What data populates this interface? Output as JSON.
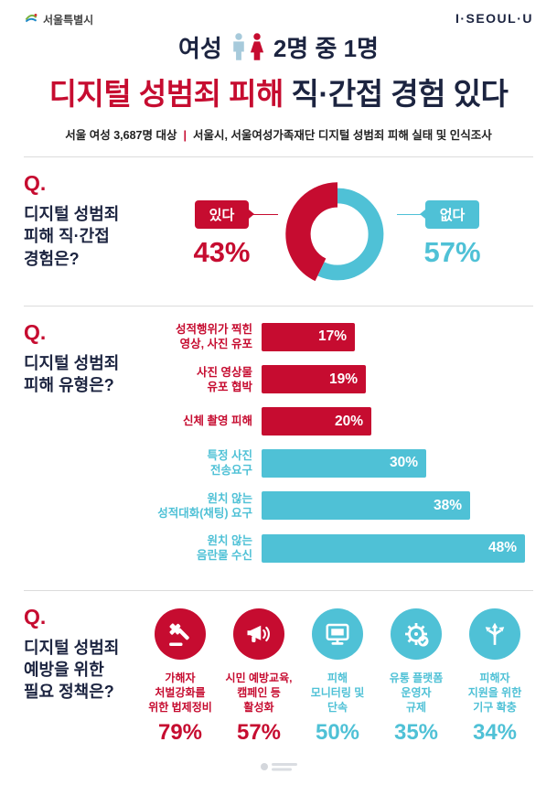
{
  "colors": {
    "red": "#c60c30",
    "blue": "#4fc1d6",
    "dark": "#1c2440",
    "person_left": "#a7cadb",
    "person_right": "#c60c30"
  },
  "header": {
    "city_logo": "서울특별시",
    "brand": "I·SEOUL·U"
  },
  "headline": {
    "lead_left": "여성",
    "lead_right": "2명 중 1명",
    "title_red": "디지털 성범죄 피해",
    "title_dark": " 직·간접 경험 있다",
    "source_sample": "서울 여성 3,687명 대상",
    "source_sep": "|",
    "source_org": "서울시, 서울여성가족재단 디지털 성범죄 피해 실태 및 인식조사"
  },
  "q1": {
    "mark": "Q.",
    "question": "디지털 성범죄\n피해 직·간접\n경험은?",
    "yes_label": "있다",
    "yes_value": "43%",
    "no_label": "없다",
    "no_value": "57%"
  },
  "q2": {
    "mark": "Q.",
    "question": "디지털 성범죄\n피해 유형은?"
  },
  "q3": {
    "mark": "Q.",
    "question": "디지털 성범죄\n예방을 위한\n필요 정책은?"
  },
  "chart_data": [
    {
      "type": "pie",
      "style": "donut",
      "title": "디지털 성범죄 피해 직·간접 경험은?",
      "labels": [
        "있다",
        "없다"
      ],
      "values": [
        43,
        57
      ],
      "colors": [
        "#c60c30",
        "#4fc1d6"
      ],
      "unit": "%"
    },
    {
      "type": "bar",
      "orientation": "horizontal",
      "title": "디지털 성범죄 피해 유형은?",
      "categories": [
        "성적행위가 찍힌\n영상, 사진 유포",
        "사진 영상물\n유포 협박",
        "신체 촬영 피해",
        "특정 사진\n전송요구",
        "원치 않는\n성적대화(채팅) 요구",
        "원치 않는\n음란물 수신"
      ],
      "values": [
        17,
        19,
        20,
        30,
        38,
        48
      ],
      "bar_colors": [
        "#c60c30",
        "#c60c30",
        "#c60c30",
        "#4fc1d6",
        "#4fc1d6",
        "#4fc1d6"
      ],
      "unit": "%",
      "xlim": [
        0,
        50
      ]
    },
    {
      "type": "bar",
      "style": "icon-stats",
      "title": "디지털 성범죄 예방을 위한 필요 정책은?",
      "unit": "%",
      "colors": [
        "#c60c30",
        "#c60c30",
        "#4fc1d6",
        "#4fc1d6",
        "#4fc1d6"
      ],
      "items": [
        {
          "icon": "gavel-icon",
          "label": "가해자\n처벌강화를\n위한 법제정비",
          "value": 79
        },
        {
          "icon": "megaphone-icon",
          "label": "시민 예방교육,\n캠페인 등\n활성화",
          "value": 57
        },
        {
          "icon": "monitor-icon",
          "label": "피해\n모니터링 및\n단속",
          "value": 50
        },
        {
          "icon": "gear-icon",
          "label": "유통 플랫폼\n운영자\n규제",
          "value": 35
        },
        {
          "icon": "arrows-icon",
          "label": "피해자\n지원을 위한\n기구 확충",
          "value": 34
        }
      ]
    }
  ]
}
